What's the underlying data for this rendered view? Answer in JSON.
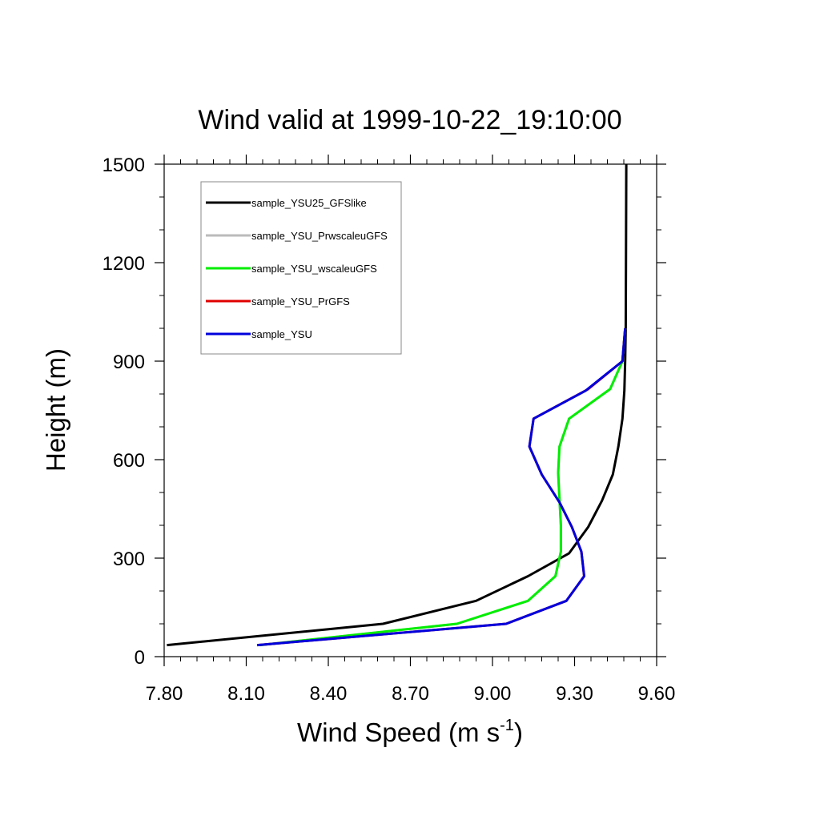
{
  "chart_data": {
    "type": "line",
    "title": "Wind valid at 1999-10-22_19:10:00",
    "xlabel": "Wind Speed (m s",
    "xlabel_sup": "-1",
    "xlabel_tail": ")",
    "ylabel": "Height (m)",
    "xlim": [
      7.8,
      9.6
    ],
    "ylim": [
      0,
      1500
    ],
    "xticks": [
      "7.80",
      "8.10",
      "8.40",
      "8.70",
      "9.00",
      "9.30",
      "9.60"
    ],
    "yticks": [
      "0",
      "300",
      "600",
      "900",
      "1200",
      "1500"
    ],
    "legend_position": "top-left",
    "series": [
      {
        "name": "sample_YSU25_GFSlike",
        "color": "#000000",
        "points": [
          [
            7.81,
            35
          ],
          [
            8.6,
            100
          ],
          [
            8.94,
            170
          ],
          [
            9.13,
            245
          ],
          [
            9.28,
            315
          ],
          [
            9.35,
            395
          ],
          [
            9.4,
            475
          ],
          [
            9.44,
            555
          ],
          [
            9.46,
            640
          ],
          [
            9.475,
            725
          ],
          [
            9.482,
            810
          ],
          [
            9.485,
            900
          ],
          [
            9.487,
            1000
          ],
          [
            9.488,
            1200
          ],
          [
            9.489,
            1500
          ]
        ]
      },
      {
        "name": "sample_YSU_PrwscaleuGFS",
        "color": "#bbbbbb",
        "points": [
          [
            8.15,
            35
          ],
          [
            8.87,
            100
          ],
          [
            9.13,
            170
          ],
          [
            9.23,
            245
          ],
          [
            9.25,
            320
          ],
          [
            9.25,
            400
          ],
          [
            9.245,
            480
          ],
          [
            9.24,
            560
          ],
          [
            9.245,
            640
          ],
          [
            9.28,
            725
          ],
          [
            9.43,
            815
          ],
          [
            9.475,
            900
          ],
          [
            9.485,
            1000
          ]
        ]
      },
      {
        "name": "sample_YSU_wscaleuGFS",
        "color": "#00ee00",
        "points": [
          [
            8.15,
            35
          ],
          [
            8.87,
            100
          ],
          [
            9.13,
            170
          ],
          [
            9.23,
            245
          ],
          [
            9.25,
            320
          ],
          [
            9.25,
            400
          ],
          [
            9.245,
            480
          ],
          [
            9.24,
            560
          ],
          [
            9.245,
            640
          ],
          [
            9.28,
            725
          ],
          [
            9.43,
            815
          ],
          [
            9.475,
            900
          ],
          [
            9.485,
            1000
          ]
        ]
      },
      {
        "name": "sample_YSU_PrGFS",
        "color": "#e00000",
        "points": [
          [
            8.14,
            35
          ],
          [
            9.05,
            100
          ],
          [
            9.27,
            170
          ],
          [
            9.335,
            245
          ],
          [
            9.325,
            320
          ],
          [
            9.29,
            395
          ],
          [
            9.245,
            470
          ],
          [
            9.18,
            555
          ],
          [
            9.135,
            640
          ],
          [
            9.15,
            725
          ],
          [
            9.35,
            815
          ],
          [
            9.475,
            900
          ],
          [
            9.485,
            1000
          ]
        ]
      },
      {
        "name": "sample_YSU",
        "color": "#0000dd",
        "points": [
          [
            8.14,
            35
          ],
          [
            9.05,
            100
          ],
          [
            9.27,
            170
          ],
          [
            9.335,
            245
          ],
          [
            9.325,
            320
          ],
          [
            9.29,
            395
          ],
          [
            9.245,
            470
          ],
          [
            9.18,
            555
          ],
          [
            9.135,
            640
          ],
          [
            9.15,
            725
          ],
          [
            9.34,
            810
          ],
          [
            9.475,
            900
          ],
          [
            9.485,
            1000
          ]
        ]
      }
    ]
  }
}
